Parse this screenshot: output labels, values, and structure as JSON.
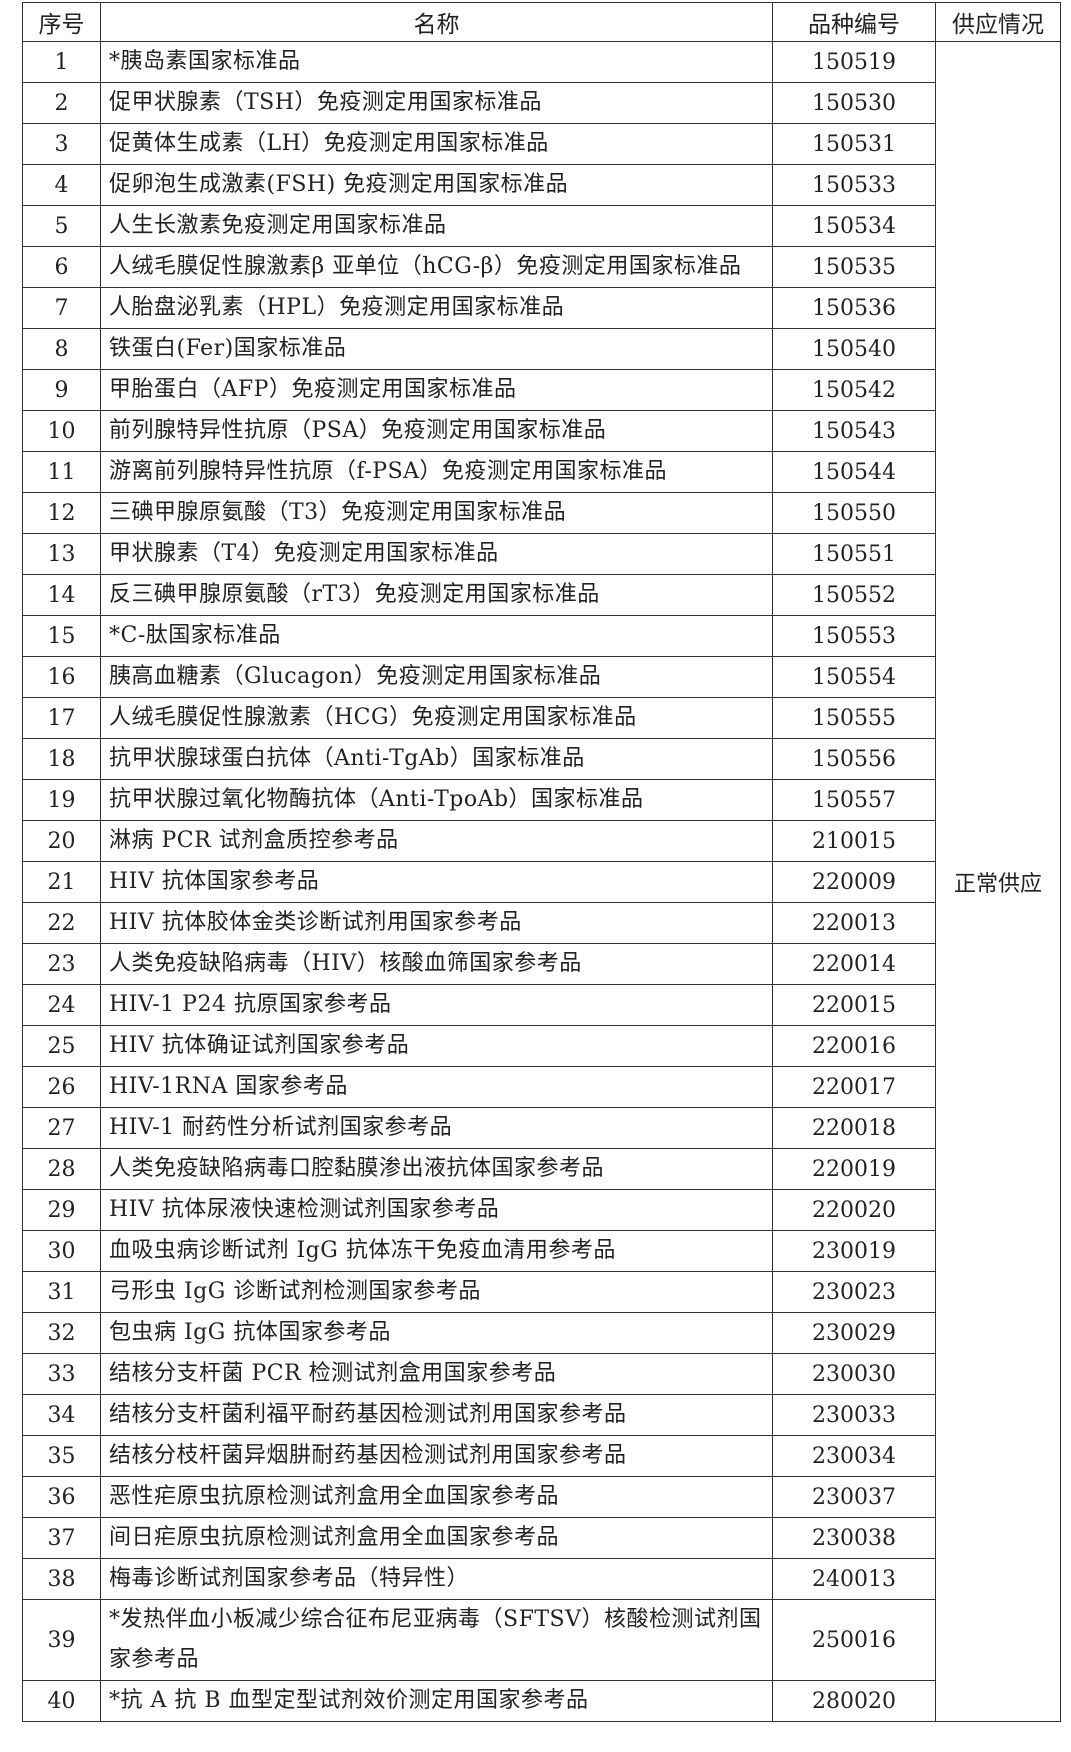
{
  "headers": [
    "序号",
    "名称",
    "品种编号",
    "供应情况"
  ],
  "supply": "正常供应",
  "rows": [
    {
      "no": "1",
      "name": "*胰岛素国家标准品",
      "code": "150519"
    },
    {
      "no": "2",
      "name": "促甲状腺素（TSH）免疫测定用国家标准品",
      "code": "150530"
    },
    {
      "no": "3",
      "name": "促黄体生成素（LH）免疫测定用国家标准品",
      "code": "150531"
    },
    {
      "no": "4",
      "name": "促卵泡生成激素(FSH) 免疫测定用国家标准品",
      "code": "150533"
    },
    {
      "no": "5",
      "name": "人生长激素免疫测定用国家标准品",
      "code": "150534"
    },
    {
      "no": "6",
      "name": "人绒毛膜促性腺激素β 亚单位（hCG-β）免疫测定用国家标准品",
      "code": "150535"
    },
    {
      "no": "7",
      "name": "人胎盘泌乳素（HPL）免疫测定用国家标准品",
      "code": "150536"
    },
    {
      "no": "8",
      "name": "铁蛋白(Fer)国家标准品",
      "code": "150540"
    },
    {
      "no": "9",
      "name": "甲胎蛋白（AFP）免疫测定用国家标准品",
      "code": "150542"
    },
    {
      "no": "10",
      "name": "前列腺特异性抗原（PSA）免疫测定用国家标准品",
      "code": "150543"
    },
    {
      "no": "11",
      "name": "游离前列腺特异性抗原（f-PSA）免疫测定用国家标准品",
      "code": "150544"
    },
    {
      "no": "12",
      "name": "三碘甲腺原氨酸（T3）免疫测定用国家标准品",
      "code": "150550"
    },
    {
      "no": "13",
      "name": "甲状腺素（T4）免疫测定用国家标准品",
      "code": "150551"
    },
    {
      "no": "14",
      "name": "反三碘甲腺原氨酸（rT3）免疫测定用国家标准品",
      "code": "150552"
    },
    {
      "no": "15",
      "name": "*C-肽国家标准品",
      "code": "150553"
    },
    {
      "no": "16",
      "name": "胰高血糖素（Glucagon）免疫测定用国家标准品",
      "code": "150554"
    },
    {
      "no": "17",
      "name": "人绒毛膜促性腺激素（HCG）免疫测定用国家标准品",
      "code": "150555"
    },
    {
      "no": "18",
      "name": "抗甲状腺球蛋白抗体（Anti-TgAb）国家标准品",
      "code": "150556"
    },
    {
      "no": "19",
      "name": "抗甲状腺过氧化物酶抗体（Anti-TpoAb）国家标准品",
      "code": "150557"
    },
    {
      "no": "20",
      "name": "淋病 PCR 试剂盒质控参考品",
      "code": "210015"
    },
    {
      "no": "21",
      "name": "HIV 抗体国家参考品",
      "code": "220009"
    },
    {
      "no": "22",
      "name": "HIV 抗体胶体金类诊断试剂用国家参考品",
      "code": "220013"
    },
    {
      "no": "23",
      "name": "人类免疫缺陷病毒（HIV）核酸血筛国家参考品",
      "code": "220014"
    },
    {
      "no": "24",
      "name": "HIV-1 P24 抗原国家参考品",
      "code": "220015"
    },
    {
      "no": "25",
      "name": "HIV 抗体确证试剂国家参考品",
      "code": "220016"
    },
    {
      "no": "26",
      "name": "HIV-1RNA 国家参考品",
      "code": "220017"
    },
    {
      "no": "27",
      "name": "HIV-1 耐药性分析试剂国家参考品",
      "code": "220018"
    },
    {
      "no": "28",
      "name": "人类免疫缺陷病毒口腔黏膜渗出液抗体国家参考品",
      "code": "220019"
    },
    {
      "no": "29",
      "name": "HIV 抗体尿液快速检测试剂国家参考品",
      "code": "220020"
    },
    {
      "no": "30",
      "name": "血吸虫病诊断试剂 IgG 抗体冻干免疫血清用参考品",
      "code": "230019"
    },
    {
      "no": "31",
      "name": "弓形虫 IgG 诊断试剂检测国家参考品",
      "code": "230023"
    },
    {
      "no": "32",
      "name": "包虫病 IgG 抗体国家参考品",
      "code": "230029"
    },
    {
      "no": "33",
      "name": "结核分支杆菌 PCR 检测试剂盒用国家参考品",
      "code": "230030"
    },
    {
      "no": "34",
      "name": "结核分支杆菌利福平耐药基因检测试剂用国家参考品",
      "code": "230033"
    },
    {
      "no": "35",
      "name": "结核分枝杆菌异烟肼耐药基因检测试剂用国家参考品",
      "code": "230034"
    },
    {
      "no": "36",
      "name": "恶性疟原虫抗原检测试剂盒用全血国家参考品",
      "code": "230037"
    },
    {
      "no": "37",
      "name": "间日疟原虫抗原检测试剂盒用全血国家参考品",
      "code": "230038"
    },
    {
      "no": "38",
      "name": "梅毒诊断试剂国家参考品（特异性）",
      "code": "240013"
    },
    {
      "no": "39",
      "name": "*发热伴血小板减少综合征布尼亚病毒（SFTSV）核酸检测试剂国家参考品",
      "code": "250016"
    },
    {
      "no": "40",
      "name": "*抗 A 抗 B 血型定型试剂效价测定用国家参考品",
      "code": "280020"
    }
  ]
}
